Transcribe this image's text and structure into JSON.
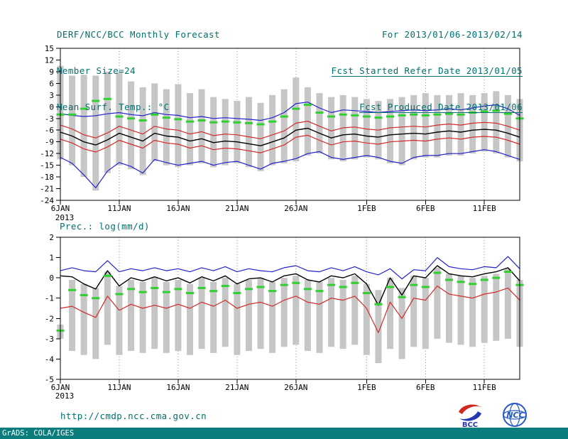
{
  "header": {
    "left_lines": [
      "DERF/NCC/BCC Monthly Forecast",
      "Member Size=24",
      "Mean Surf. Temp.: °C"
    ],
    "right_lines": [
      "For 2013/01/06-2013/02/14",
      "Fcst Started Refer Date 2013/01/05",
      "Fcst Produced Date 2013/01/06"
    ]
  },
  "footer": {
    "url": "http://cmdp.ncc.cma.gov.cn",
    "credit": "GrADS: COLA/IGES",
    "logo_bcc": "BCC",
    "logo_ncc": "NCC"
  },
  "colors": {
    "teal_text": "#007070",
    "strip_bg": "#0b7d7d",
    "bar": "#c6c6c6",
    "blue": "#2222cc",
    "red": "#d42a2a",
    "black": "#000000",
    "green": "#2fd12f",
    "grid": "#909090"
  },
  "chart_data": [
    {
      "type": "line",
      "name": "temperature-chart",
      "title": "Mean Surf. Temp.: °C",
      "xlabel": "",
      "ylabel": "°C",
      "ylim": [
        -24,
        15
      ],
      "yticks": [
        15,
        12,
        9,
        6,
        3,
        0,
        -3,
        -6,
        -9,
        -12,
        -15,
        -18,
        -21,
        -24
      ],
      "n_points": 40,
      "xticks": [
        {
          "day": 0,
          "label": "6JAN",
          "sublabel": "2013"
        },
        {
          "day": 5,
          "label": "11JAN"
        },
        {
          "day": 10,
          "label": "16JAN"
        },
        {
          "day": 15,
          "label": "21JAN"
        },
        {
          "day": 20,
          "label": "26JAN"
        },
        {
          "day": 26,
          "label": "1FEB"
        },
        {
          "day": 31,
          "label": "6FEB"
        },
        {
          "day": 36,
          "label": "11FEB"
        }
      ],
      "bars": {
        "name": "ensemble-range-bars",
        "top": [
          10.5,
          8,
          8.2,
          8,
          9,
          8.8,
          6.5,
          5,
          6,
          4.5,
          5.8,
          3.5,
          4.5,
          2.5,
          2,
          1.5,
          2.5,
          1,
          3,
          4.5,
          7.5,
          5,
          3.5,
          2.5,
          3,
          2.5,
          2,
          1.5,
          2,
          2.5,
          3,
          3.5,
          3,
          3,
          3.5,
          3,
          3.5,
          4,
          3,
          2
        ],
        "bottom": [
          -13.5,
          -15,
          -18,
          -21.5,
          -17,
          -15,
          -16,
          -17.5,
          -14,
          -15,
          -15.5,
          -15,
          -14.5,
          -15.5,
          -15,
          -14.5,
          -15.5,
          -16.5,
          -15,
          -14.5,
          -14,
          -12.5,
          -12,
          -13.5,
          -14,
          -13.5,
          -13,
          -13.5,
          -14.5,
          -15,
          -13.5,
          -13,
          -13,
          -12.5,
          -12.5,
          -12,
          -11.5,
          -12,
          -13,
          -14
        ]
      },
      "series": [
        {
          "name": "ensemble-upper-blue",
          "color_key": "blue",
          "values": [
            -1.8,
            -2.2,
            -2.5,
            -2.3,
            -1.8,
            -1.5,
            -2,
            -2.3,
            -1.5,
            -2,
            -2.2,
            -2.8,
            -2.5,
            -3,
            -2.8,
            -3,
            -3.2,
            -3.5,
            -2.8,
            -1.5,
            0.8,
            1.2,
            -0.3,
            -1.5,
            -0.8,
            -1,
            -1.2,
            -1.5,
            -1.2,
            -1,
            -0.8,
            -1,
            -0.8,
            -0.5,
            -0.8,
            -0.3,
            0.2,
            0.5,
            -0.5,
            -2.2
          ]
        },
        {
          "name": "upper-spread-red",
          "color_key": "red",
          "values": [
            -4.7,
            -5.7,
            -7.2,
            -8,
            -6.7,
            -5,
            -6,
            -7,
            -5,
            -5.7,
            -6,
            -7,
            -6.4,
            -7.4,
            -7,
            -7.2,
            -7.7,
            -8.2,
            -7.2,
            -6.2,
            -4.2,
            -3.7,
            -5,
            -6.2,
            -5.4,
            -5.2,
            -5.7,
            -6,
            -5.4,
            -5.2,
            -5,
            -5.2,
            -4.7,
            -4.4,
            -4.7,
            -4.2,
            -4,
            -4.2,
            -5,
            -6
          ]
        },
        {
          "name": "lower-spread-red",
          "color_key": "red",
          "values": [
            -8.3,
            -9.3,
            -10.8,
            -11.6,
            -10.3,
            -8.6,
            -9.6,
            -10.6,
            -8.6,
            -9.3,
            -9.6,
            -10.6,
            -10,
            -11,
            -10.6,
            -10.8,
            -11.3,
            -11.8,
            -10.8,
            -9.8,
            -7.8,
            -7.3,
            -8.6,
            -9.8,
            -9,
            -8.8,
            -9.3,
            -9.6,
            -9,
            -8.8,
            -8.6,
            -8.8,
            -8.3,
            -8,
            -8.3,
            -7.8,
            -7.6,
            -7.8,
            -8.6,
            -9.6
          ]
        },
        {
          "name": "ensemble-lower-blue",
          "color_key": "blue",
          "values": [
            -13,
            -14.5,
            -17.5,
            -20.8,
            -16.5,
            -14.3,
            -15.3,
            -17,
            -13.5,
            -14.3,
            -15,
            -14.5,
            -14,
            -15,
            -14.3,
            -14,
            -15,
            -16,
            -14.5,
            -14,
            -13.3,
            -12,
            -11.5,
            -13,
            -13.5,
            -13,
            -12.5,
            -13,
            -14,
            -14.5,
            -13,
            -12.5,
            -12.5,
            -12,
            -12,
            -11.5,
            -11,
            -11.5,
            -12.5,
            -13.5
          ]
        },
        {
          "name": "ensemble-mean-black",
          "color_key": "black",
          "values": [
            -6.5,
            -7.5,
            -9,
            -9.8,
            -8.5,
            -6.8,
            -7.8,
            -8.8,
            -6.8,
            -7.5,
            -7.8,
            -8.8,
            -8.2,
            -9.2,
            -8.8,
            -9,
            -9.5,
            -10,
            -9,
            -8,
            -6,
            -5.5,
            -6.8,
            -8,
            -7.2,
            -7,
            -7.5,
            -7.8,
            -7.2,
            -7,
            -6.8,
            -7,
            -6.5,
            -6.2,
            -6.5,
            -6,
            -5.8,
            -6,
            -6.8,
            -7.8
          ]
        }
      ],
      "markers": {
        "name": "observation-green-dashes",
        "color_key": "green",
        "values": [
          -2,
          -2,
          -0.5,
          1.5,
          2,
          -2.5,
          -3,
          -3.5,
          -2,
          -2.8,
          -3.2,
          -3.8,
          -3.5,
          -4,
          -3.8,
          -4,
          -4.2,
          -4.5,
          -3.8,
          -2.5,
          -0.5,
          0.5,
          -1.5,
          -2.5,
          -2,
          -2.2,
          -2.5,
          -2.8,
          -2.5,
          -2.2,
          -2,
          -2.2,
          -2,
          -1.8,
          -2,
          -1.5,
          -1.2,
          -1,
          -1.8,
          -3
        ]
      }
    },
    {
      "type": "line",
      "name": "precipitation-chart",
      "title": "Prec.: log(mm/d)",
      "xlabel": "",
      "ylabel": "log(mm/d)",
      "ylim": [
        -5,
        2
      ],
      "yticks": [
        2,
        1,
        0,
        -1,
        -2,
        -3,
        -4,
        -5
      ],
      "n_points": 40,
      "xticks": [
        {
          "day": 0,
          "label": "6JAN",
          "sublabel": "2013"
        },
        {
          "day": 5,
          "label": "11JAN"
        },
        {
          "day": 10,
          "label": "16JAN"
        },
        {
          "day": 15,
          "label": "21JAN"
        },
        {
          "day": 20,
          "label": "26JAN"
        },
        {
          "day": 26,
          "label": "1FEB"
        },
        {
          "day": 31,
          "label": "6FEB"
        },
        {
          "day": 36,
          "label": "11FEB"
        }
      ],
      "bars": {
        "name": "ensemble-range-bars",
        "top": [
          -2.3,
          -0.1,
          -0.3,
          -0.5,
          0.3,
          -0.4,
          -0.1,
          -0.2,
          0,
          -0.2,
          -0.1,
          -0.3,
          0,
          -0.2,
          0,
          -0.3,
          -0.1,
          0,
          -0.2,
          0,
          0.1,
          -0.1,
          -0.2,
          0,
          -0.1,
          0.1,
          -0.3,
          -0.6,
          0,
          -0.5,
          0.1,
          0,
          0.5,
          0.2,
          0.1,
          0,
          0.1,
          0.2,
          0.45,
          -0.1
        ],
        "bottom": [
          -3,
          -3.6,
          -3.8,
          -4,
          -3.3,
          -3.8,
          -3.6,
          -3.7,
          -3.5,
          -3.7,
          -3.6,
          -3.8,
          -3.5,
          -3.7,
          -3.4,
          -3.8,
          -3.6,
          -3.5,
          -3.7,
          -3.4,
          -3.3,
          -3.6,
          -3.7,
          -3.4,
          -3.5,
          -3.3,
          -3.8,
          -4.2,
          -3.5,
          -4,
          -3.4,
          -3.5,
          -3,
          -3.2,
          -3.3,
          -3.4,
          -3.2,
          -3.1,
          -3,
          -3.4
        ]
      },
      "series": [
        {
          "name": "ensemble-upper-blue",
          "color_key": "blue",
          "values": [
            0.35,
            0.5,
            0.35,
            0.3,
            0.85,
            0.3,
            0.45,
            0.35,
            0.5,
            0.35,
            0.45,
            0.3,
            0.5,
            0.35,
            0.55,
            0.3,
            0.45,
            0.35,
            0.3,
            0.5,
            0.6,
            0.35,
            0.3,
            0.5,
            0.35,
            0.55,
            0.3,
            0.15,
            0.45,
            -0.05,
            0.4,
            0.35,
            1,
            0.55,
            0.45,
            0.4,
            0.55,
            0.5,
            1.05,
            0.45
          ]
        },
        {
          "name": "lower-spread-red",
          "color_key": "red",
          "values": [
            -1.5,
            -1.4,
            -1.7,
            -1.95,
            -0.9,
            -1.6,
            -1.3,
            -1.5,
            -1.35,
            -1.5,
            -1.3,
            -1.5,
            -1.2,
            -1.4,
            -1.1,
            -1.5,
            -1.3,
            -1.2,
            -1.4,
            -1.1,
            -0.9,
            -1.2,
            -1.3,
            -1,
            -1.1,
            -0.9,
            -1.5,
            -2.7,
            -1.2,
            -2,
            -1,
            -1.1,
            -0.4,
            -0.8,
            -0.9,
            -1,
            -0.8,
            -0.7,
            -0.5,
            -1.1
          ]
        },
        {
          "name": "ensemble-mean-black",
          "color_key": "black",
          "values": [
            0.1,
            0.05,
            -0.3,
            -0.55,
            0.35,
            -0.4,
            0,
            -0.15,
            0.05,
            -0.15,
            0,
            -0.25,
            0.05,
            -0.15,
            0.1,
            -0.3,
            -0.05,
            0,
            -0.2,
            0.1,
            0.2,
            -0.1,
            -0.2,
            0.1,
            0,
            0.2,
            -0.3,
            -1.35,
            0,
            -0.85,
            0.1,
            0,
            0.6,
            0.2,
            0.1,
            0.05,
            0.2,
            0.3,
            0.5,
            -0.15
          ]
        }
      ],
      "markers": {
        "name": "observation-green-dashes",
        "color_key": "green",
        "values": [
          -2.6,
          -0.6,
          -0.85,
          -1,
          0.1,
          -0.8,
          -0.55,
          -0.7,
          -0.5,
          -0.7,
          -0.55,
          -0.75,
          -0.5,
          -0.65,
          -0.4,
          -0.75,
          -0.55,
          -0.45,
          -0.65,
          -0.35,
          -0.25,
          -0.55,
          -0.65,
          -0.35,
          -0.45,
          -0.25,
          -0.75,
          -1.3,
          -0.45,
          -0.95,
          -0.35,
          -0.45,
          0.25,
          -0.1,
          -0.2,
          -0.3,
          -0.1,
          0,
          0.3,
          -0.35
        ]
      }
    }
  ]
}
